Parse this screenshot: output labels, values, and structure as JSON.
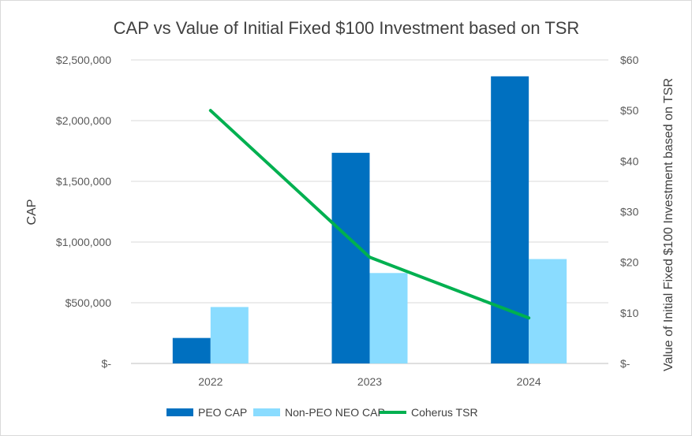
{
  "chart_data": {
    "type": "bar",
    "title": "CAP vs Value of Initial Fixed $100 Investment based on TSR",
    "categories": [
      "2022",
      "2023",
      "2024"
    ],
    "series": [
      {
        "name": "PEO CAP",
        "kind": "bar",
        "axis": "left",
        "color": "#0070C0",
        "values": [
          210000,
          1735000,
          2365000
        ]
      },
      {
        "name": "Non-PEO NEO CAP",
        "kind": "bar",
        "axis": "left",
        "color": "#8ADCFF",
        "values": [
          465000,
          745000,
          860000
        ]
      },
      {
        "name": "Coherus TSR",
        "kind": "line",
        "axis": "right",
        "color": "#00B050",
        "values": [
          50,
          21,
          9
        ]
      }
    ],
    "ylabel": "CAP",
    "y2label": "Value of Initial Fixed $100 Investment based on TSR",
    "ylim": [
      0,
      2500000
    ],
    "y2lim": [
      0,
      60
    ],
    "yticks": [
      "$-",
      "$500,000",
      "$1,000,000",
      "$1,500,000",
      "$2,000,000",
      "$2,500,000"
    ],
    "y2ticks": [
      "$-",
      "$10",
      "$20",
      "$30",
      "$40",
      "$50",
      "$60"
    ],
    "grid": true,
    "legend": "bottom"
  }
}
